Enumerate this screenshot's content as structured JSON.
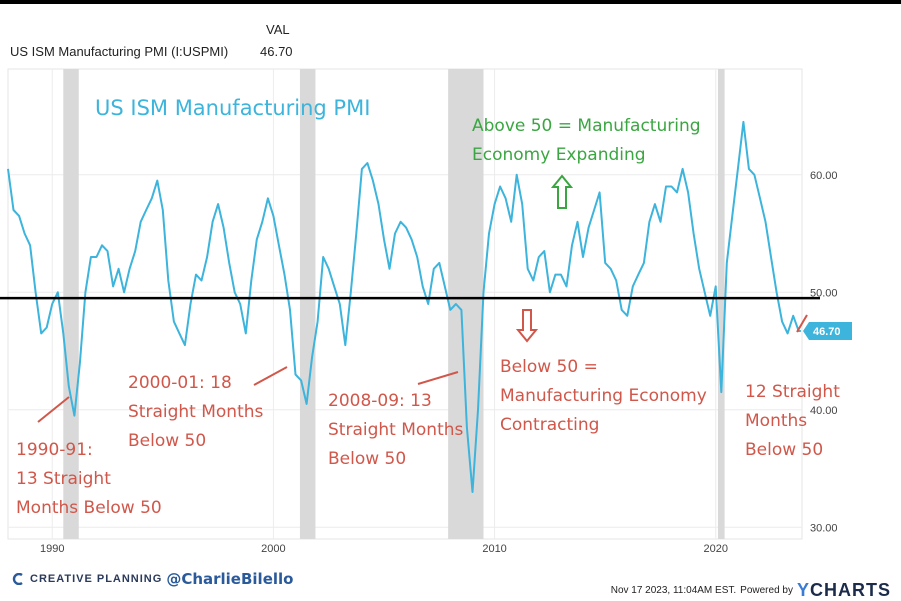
{
  "header": {
    "series_label": "US ISM Manufacturing PMI (I:USPMI)",
    "val_label": "VAL",
    "value": "46.70"
  },
  "footer": {
    "brand": "CREATIVE PLANNING",
    "handle": "@CharlieBilello",
    "timestamp": "Nov 17 2023, 11:04AM EST.",
    "powered_by": "Powered by",
    "ycharts_y": "Y",
    "ycharts_rest": "CHARTS"
  },
  "colors": {
    "line": "#3cb4dc",
    "recession_shade": "#d9d9d9",
    "threshold_line": "#000000",
    "green_annotation": "#3aa641",
    "red_annotation": "#d0574a",
    "title_color": "#3cb4dc"
  },
  "chart_data": {
    "type": "line",
    "title": "US ISM Manufacturing PMI",
    "xlabel": "",
    "ylabel": "",
    "xlim": [
      1988.0,
      2023.9
    ],
    "ylim": [
      29.0,
      69.0
    ],
    "x_ticks": [
      {
        "value": 1990,
        "label": "1990"
      },
      {
        "value": 2000,
        "label": "2000"
      },
      {
        "value": 2010,
        "label": "2010"
      },
      {
        "value": 2020,
        "label": "2020"
      }
    ],
    "y_ticks": [
      {
        "value": 30,
        "label": "30.00"
      },
      {
        "value": 40,
        "label": "40.00"
      },
      {
        "value": 50,
        "label": "50.00"
      },
      {
        "value": 60,
        "label": "60.00"
      }
    ],
    "threshold": 49.5,
    "last_value": 46.7,
    "last_value_label": "46.70",
    "recessions": [
      [
        1990.5,
        1991.2
      ],
      [
        2001.2,
        2001.9
      ],
      [
        2007.9,
        2009.5
      ],
      [
        2020.1,
        2020.4
      ]
    ],
    "series": [
      {
        "x": [
          1988.0,
          1988.25,
          1988.5,
          1988.75,
          1989.0,
          1989.25,
          1989.5,
          1989.75,
          1990.0,
          1990.25,
          1990.5,
          1990.75,
          1991.0,
          1991.25,
          1991.5,
          1991.75,
          1992.0,
          1992.25,
          1992.5,
          1992.75,
          1993.0,
          1993.25,
          1993.5,
          1993.75,
          1994.0,
          1994.25,
          1994.5,
          1994.75,
          1995.0,
          1995.25,
          1995.5,
          1995.75,
          1996.0,
          1996.25,
          1996.5,
          1996.75,
          1997.0,
          1997.25,
          1997.5,
          1997.75,
          1998.0,
          1998.25,
          1998.5,
          1998.75,
          1999.0,
          1999.25,
          1999.5,
          1999.75,
          2000.0,
          2000.25,
          2000.5,
          2000.75,
          2001.0,
          2001.25,
          2001.5,
          2001.75,
          2002.0,
          2002.25,
          2002.5,
          2002.75,
          2003.0,
          2003.25,
          2003.5,
          2003.75,
          2004.0,
          2004.25,
          2004.5,
          2004.75,
          2005.0,
          2005.25,
          2005.5,
          2005.75,
          2006.0,
          2006.25,
          2006.5,
          2006.75,
          2007.0,
          2007.25,
          2007.5,
          2007.75,
          2008.0,
          2008.25,
          2008.5,
          2008.75,
          2009.0,
          2009.25,
          2009.5,
          2009.75,
          2010.0,
          2010.25,
          2010.5,
          2010.75,
          2011.0,
          2011.25,
          2011.5,
          2011.75,
          2012.0,
          2012.25,
          2012.5,
          2012.75,
          2013.0,
          2013.25,
          2013.5,
          2013.75,
          2014.0,
          2014.25,
          2014.5,
          2014.75,
          2015.0,
          2015.25,
          2015.5,
          2015.75,
          2016.0,
          2016.25,
          2016.5,
          2016.75,
          2017.0,
          2017.25,
          2017.5,
          2017.75,
          2018.0,
          2018.25,
          2018.5,
          2018.75,
          2019.0,
          2019.25,
          2019.5,
          2019.75,
          2020.0,
          2020.25,
          2020.5,
          2020.75,
          2021.0,
          2021.25,
          2021.5,
          2021.75,
          2022.0,
          2022.25,
          2022.5,
          2022.75,
          2023.0,
          2023.25,
          2023.5,
          2023.75,
          2023.85
        ],
        "values": [
          60.5,
          57.0,
          56.5,
          55.0,
          54.0,
          50.0,
          46.5,
          47.0,
          49.0,
          50.0,
          46.5,
          42.0,
          39.5,
          44.0,
          50.0,
          53.0,
          53.0,
          54.0,
          53.5,
          50.5,
          52.0,
          50.0,
          52.0,
          53.5,
          56.0,
          57.0,
          58.0,
          59.5,
          57.0,
          51.0,
          47.5,
          46.5,
          45.5,
          49.0,
          51.5,
          51.0,
          53.0,
          56.0,
          57.5,
          55.5,
          52.5,
          50.0,
          49.0,
          46.5,
          51.0,
          54.5,
          56.0,
          58.0,
          56.5,
          54.0,
          51.5,
          48.5,
          43.0,
          42.5,
          40.5,
          44.5,
          47.5,
          53.0,
          52.0,
          50.5,
          49.0,
          45.5,
          50.0,
          55.0,
          60.5,
          61.0,
          59.5,
          57.5,
          54.5,
          52.0,
          55.0,
          56.0,
          55.5,
          54.5,
          53.0,
          50.5,
          49.0,
          52.0,
          52.5,
          50.5,
          48.5,
          49.0,
          48.5,
          38.5,
          33.0,
          40.0,
          50.0,
          55.0,
          57.5,
          59.0,
          58.0,
          56.0,
          60.0,
          57.5,
          52.0,
          51.0,
          53.0,
          53.5,
          50.0,
          51.5,
          51.5,
          50.5,
          54.0,
          56.0,
          53.0,
          55.5,
          57.0,
          58.5,
          52.5,
          52.0,
          51.0,
          48.5,
          48.0,
          50.5,
          51.5,
          52.5,
          56.0,
          57.5,
          56.0,
          59.0,
          59.0,
          58.5,
          60.5,
          58.5,
          55.0,
          52.0,
          50.0,
          48.0,
          50.5,
          41.5,
          52.5,
          56.5,
          60.5,
          64.5,
          60.5,
          60.0,
          58.0,
          56.0,
          53.0,
          50.0,
          47.5,
          46.5,
          48.0,
          46.7,
          46.7
        ]
      }
    ],
    "annotations": [
      {
        "id": "title",
        "text": "US ISM Manufacturing PMI",
        "color": "#3cb4dc"
      },
      {
        "id": "above",
        "text": "Above 50 = Manufacturing\nEconomy Expanding",
        "color": "#3aa641"
      },
      {
        "id": "below",
        "text": "Below 50 =\nManufacturing Economy\nContracting",
        "color": "#d0574a"
      },
      {
        "id": "r1990",
        "text": "1990-91:\n13 Straight\nMonths Below 50",
        "color": "#d0574a"
      },
      {
        "id": "r2000",
        "text": "2000-01: 18\nStraight Months\nBelow 50",
        "color": "#d0574a"
      },
      {
        "id": "r2008",
        "text": "2008-09: 13\nStraight Months\nBelow 50",
        "color": "#d0574a"
      },
      {
        "id": "r2022",
        "text": "12 Straight\nMonths\nBelow 50",
        "color": "#d0574a"
      }
    ]
  }
}
